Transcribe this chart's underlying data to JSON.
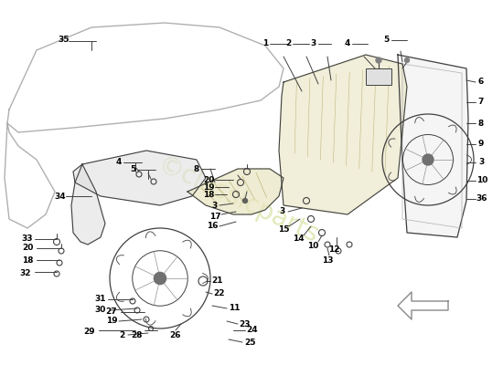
{
  "bg_color": "#ffffff",
  "line_color": "#404040",
  "light_gray": "#b0b0b0",
  "med_gray": "#888888",
  "watermark_color": "#c8d880",
  "fig_width": 5.5,
  "fig_height": 4.0,
  "dpi": 100
}
